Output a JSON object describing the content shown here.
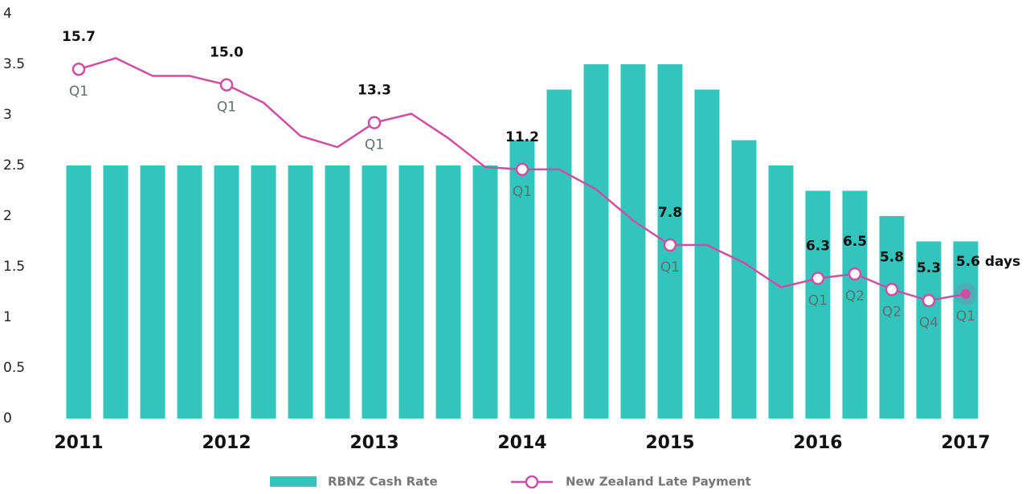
{
  "chart_data": {
    "type": "bar_line",
    "categories": [
      "2011",
      null,
      null,
      null,
      "2012",
      null,
      null,
      null,
      "2013",
      null,
      null,
      null,
      "2014",
      null,
      null,
      null,
      "2015",
      null,
      null,
      null,
      "2016",
      null,
      null,
      null,
      "2017"
    ],
    "series": [
      {
        "name": "RBNZ Cash Rate",
        "type": "bar",
        "color": "#33c4be",
        "values": [
          2.5,
          2.5,
          2.5,
          2.5,
          2.5,
          2.5,
          2.5,
          2.5,
          2.5,
          2.5,
          2.5,
          2.5,
          2.75,
          3.25,
          3.5,
          3.5,
          3.5,
          3.25,
          2.75,
          2.5,
          2.25,
          2.25,
          2.0,
          1.75,
          1.75
        ]
      },
      {
        "name": "New Zealand Late Payment",
        "type": "line",
        "axis": "y2",
        "color": "#cf4ea3",
        "values": [
          15.7,
          16.2,
          15.4,
          15.4,
          15.0,
          14.2,
          12.7,
          12.2,
          13.3,
          13.7,
          12.6,
          11.3,
          11.2,
          11.2,
          10.3,
          8.9,
          7.8,
          7.8,
          7.0,
          5.9,
          6.3,
          6.5,
          5.8,
          5.3,
          5.6
        ],
        "value_labels": [
          "15.7",
          null,
          null,
          null,
          "15.0",
          null,
          null,
          null,
          "13.3",
          null,
          null,
          null,
          "11.2",
          null,
          null,
          null,
          "7.8",
          null,
          null,
          null,
          "6.3",
          "6.5",
          "5.8",
          "5.3",
          "5.6 days"
        ],
        "quarter_labels": [
          "Q1",
          null,
          null,
          null,
          "Q1",
          null,
          null,
          null,
          "Q1",
          null,
          null,
          null,
          "Q1",
          null,
          null,
          null,
          "Q1",
          null,
          null,
          null,
          "Q1",
          "Q2",
          "Q2",
          "Q4",
          "Q1"
        ]
      }
    ],
    "ylim": [
      0,
      4
    ],
    "yticks": [
      0,
      0.5,
      1,
      1.5,
      2,
      2.5,
      3,
      3.5,
      4
    ],
    "y2lim": [
      0,
      18.2
    ],
    "grid": false
  }
}
